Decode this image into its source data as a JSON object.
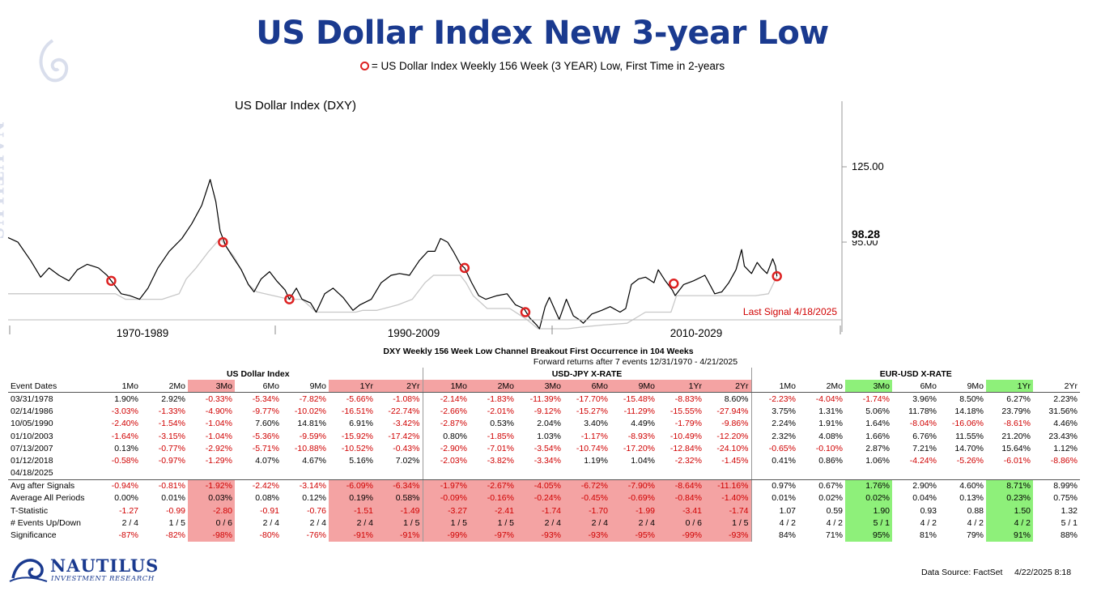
{
  "header": {
    "title": "US Dollar Index New 3-year Low",
    "subtitle": "= US Dollar Index Weekly 156 Week (3 YEAR) Low, First Time in 2-years"
  },
  "chart_data": {
    "type": "line",
    "title": "US Dollar Index (DXY)",
    "x_range": [
      "1970-12",
      "2029-12"
    ],
    "x_period_labels": [
      "1970-1989",
      "1990-2009",
      "2010-2029"
    ],
    "y_ticks": [
      "125.00",
      "95.00"
    ],
    "last_value_label": "98.28",
    "annotation": "Last Signal 4/18/2025",
    "series": [
      {
        "name": "US Dollar Index (DXY)",
        "color": "#000000",
        "points": [
          [
            1970.9,
            120.5
          ],
          [
            1971.6,
            118
          ],
          [
            1972.5,
            108
          ],
          [
            1973.2,
            99
          ],
          [
            1973.8,
            104
          ],
          [
            1974.5,
            100
          ],
          [
            1975.2,
            97
          ],
          [
            1975.8,
            103
          ],
          [
            1976.5,
            106
          ],
          [
            1977.3,
            104
          ],
          [
            1977.9,
            100
          ],
          [
            1978.2,
            97
          ],
          [
            1978.9,
            90
          ],
          [
            1979.5,
            89
          ],
          [
            1980.2,
            87
          ],
          [
            1980.8,
            93
          ],
          [
            1981.5,
            104
          ],
          [
            1982.3,
            113
          ],
          [
            1983.2,
            120
          ],
          [
            1983.9,
            128
          ],
          [
            1984.6,
            138
          ],
          [
            1985.2,
            152
          ],
          [
            1985.6,
            140
          ],
          [
            1985.9,
            124
          ],
          [
            1986.3,
            116
          ],
          [
            1986.8,
            110
          ],
          [
            1987.4,
            103
          ],
          [
            1987.9,
            95
          ],
          [
            1988.3,
            91
          ],
          [
            1988.8,
            98
          ],
          [
            1989.4,
            102
          ],
          [
            1989.9,
            97
          ],
          [
            1990.5,
            92
          ],
          [
            1990.8,
            87
          ],
          [
            1991.3,
            93
          ],
          [
            1991.7,
            87
          ],
          [
            1992.3,
            85
          ],
          [
            1992.7,
            80
          ],
          [
            1993.3,
            90
          ],
          [
            1993.9,
            93
          ],
          [
            1994.6,
            88
          ],
          [
            1995.3,
            81
          ],
          [
            1995.8,
            84
          ],
          [
            1996.6,
            87
          ],
          [
            1997.3,
            96
          ],
          [
            1998.0,
            100
          ],
          [
            1998.6,
            101
          ],
          [
            1999.3,
            100
          ],
          [
            2000.0,
            108
          ],
          [
            2000.6,
            113
          ],
          [
            2001.1,
            113
          ],
          [
            2001.5,
            120
          ],
          [
            2002.0,
            118
          ],
          [
            2002.4,
            113
          ],
          [
            2002.9,
            106
          ],
          [
            2003.2,
            104
          ],
          [
            2003.7,
            96
          ],
          [
            2004.2,
            89
          ],
          [
            2004.7,
            87
          ],
          [
            2005.5,
            89
          ],
          [
            2006.2,
            90
          ],
          [
            2006.8,
            84
          ],
          [
            2007.4,
            82
          ],
          [
            2007.8,
            77
          ],
          [
            2008.3,
            73
          ],
          [
            2008.5,
            71
          ],
          [
            2008.9,
            83
          ],
          [
            2009.2,
            88
          ],
          [
            2009.9,
            76
          ],
          [
            2010.4,
            87
          ],
          [
            2010.9,
            78
          ],
          [
            2011.3,
            76
          ],
          [
            2011.6,
            74
          ],
          [
            2012.2,
            79
          ],
          [
            2012.9,
            81
          ],
          [
            2013.5,
            83
          ],
          [
            2014.2,
            80
          ],
          [
            2014.6,
            82
          ],
          [
            2015.0,
            95
          ],
          [
            2015.5,
            98
          ],
          [
            2016.0,
            99
          ],
          [
            2016.6,
            96
          ],
          [
            2016.9,
            103
          ],
          [
            2017.4,
            97
          ],
          [
            2017.9,
            92
          ],
          [
            2018.1,
            89
          ],
          [
            2018.7,
            95
          ],
          [
            2019.4,
            97
          ],
          [
            2020.2,
            100
          ],
          [
            2020.9,
            90
          ],
          [
            2021.4,
            91
          ],
          [
            2021.9,
            96
          ],
          [
            2022.4,
            103
          ],
          [
            2022.8,
            114
          ],
          [
            2023.0,
            105
          ],
          [
            2023.5,
            101
          ],
          [
            2023.9,
            107
          ],
          [
            2024.2,
            104
          ],
          [
            2024.6,
            101
          ],
          [
            2025.0,
            109
          ],
          [
            2025.2,
            105
          ],
          [
            2025.3,
            99.5
          ]
        ]
      },
      {
        "name": "156 Week Low",
        "color": "#c8c8c8",
        "points": [
          [
            1970.9,
            90
          ],
          [
            1971.5,
            90
          ],
          [
            1972.3,
            90
          ],
          [
            1973.9,
            90
          ],
          [
            1974.3,
            90
          ],
          [
            1975.5,
            90
          ],
          [
            1977.3,
            90
          ],
          [
            1978.5,
            90
          ],
          [
            1979.2,
            87
          ],
          [
            1981.8,
            87
          ],
          [
            1983.0,
            90
          ],
          [
            1983.5,
            98
          ],
          [
            1984.2,
            104
          ],
          [
            1985.1,
            113
          ],
          [
            1985.9,
            120
          ],
          [
            1986.3,
            116
          ],
          [
            1986.9,
            110
          ],
          [
            1987.4,
            103
          ],
          [
            1987.9,
            95
          ],
          [
            1988.5,
            91
          ],
          [
            1990.8,
            87
          ],
          [
            1991.7,
            87
          ],
          [
            1992.7,
            80
          ],
          [
            1994.5,
            80
          ],
          [
            1995.5,
            80
          ],
          [
            1996.0,
            81
          ],
          [
            1997.0,
            81
          ],
          [
            1998.5,
            84
          ],
          [
            1999.5,
            87
          ],
          [
            2000.4,
            96
          ],
          [
            2001.0,
            100
          ],
          [
            2001.8,
            100
          ],
          [
            2002.3,
            100
          ],
          [
            2002.9,
            100
          ],
          [
            2003.3,
            96
          ],
          [
            2003.8,
            89
          ],
          [
            2004.8,
            82
          ],
          [
            2006.4,
            82
          ],
          [
            2007.6,
            76
          ],
          [
            2008.4,
            71
          ],
          [
            2010.5,
            71
          ],
          [
            2011.6,
            72
          ],
          [
            2013.0,
            73
          ],
          [
            2014.7,
            74
          ],
          [
            2016.0,
            80
          ],
          [
            2017.8,
            80
          ],
          [
            2018.2,
            89
          ],
          [
            2020.0,
            89
          ],
          [
            2021.0,
            89
          ],
          [
            2022.4,
            89
          ],
          [
            2023.8,
            89
          ],
          [
            2024.7,
            90
          ],
          [
            2025.3,
            99.5
          ]
        ]
      }
    ],
    "signals": [
      [
        1978.2,
        97
      ],
      [
        1986.1,
        118
      ],
      [
        1990.8,
        87
      ],
      [
        2003.2,
        104
      ],
      [
        2007.5,
        80
      ],
      [
        2018.0,
        95.5
      ],
      [
        2025.3,
        99.5
      ]
    ]
  },
  "table": {
    "title": "DXY Weekly 156 Week Low Channel Breakout First Occurrence in 104 Weeks",
    "subtitle": "Forward returns after 7 events 12/31/1970 - 4/21/2025",
    "groups": [
      "US Dollar Index",
      "USD-JPY X-RATE",
      "EUR-USD X-RATE"
    ],
    "header_label": "Event Dates",
    "columns": [
      "1Mo",
      "2Mo",
      "3Mo",
      "6Mo",
      "9Mo",
      "1Yr",
      "2Yr",
      "1Mo",
      "2Mo",
      "3Mo",
      "6Mo",
      "9Mo",
      "1Yr",
      "2Yr",
      "1Mo",
      "2Mo",
      "3Mo",
      "6Mo",
      "9Mo",
      "1Yr",
      "2Yr"
    ],
    "events": [
      {
        "date": "03/31/1978",
        "values": [
          "1.90%",
          "2.92%",
          "-0.33%",
          "-5.34%",
          "-7.82%",
          "-5.66%",
          "-1.08%",
          "-2.14%",
          "-1.83%",
          "-11.39%",
          "-17.70%",
          "-15.48%",
          "-8.83%",
          "8.60%",
          "-2.23%",
          "-4.04%",
          "-1.74%",
          "3.96%",
          "8.50%",
          "6.27%",
          "2.23%"
        ]
      },
      {
        "date": "02/14/1986",
        "values": [
          "-3.03%",
          "-1.33%",
          "-4.90%",
          "-9.77%",
          "-10.02%",
          "-16.51%",
          "-22.74%",
          "-2.66%",
          "-2.01%",
          "-9.12%",
          "-15.27%",
          "-11.29%",
          "-15.55%",
          "-27.94%",
          "3.75%",
          "1.31%",
          "5.06%",
          "11.78%",
          "14.18%",
          "23.79%",
          "31.56%"
        ]
      },
      {
        "date": "10/05/1990",
        "values": [
          "-2.40%",
          "-1.54%",
          "-1.04%",
          "7.60%",
          "14.81%",
          "6.91%",
          "-3.42%",
          "-2.87%",
          "0.53%",
          "2.04%",
          "3.40%",
          "4.49%",
          "-1.79%",
          "-9.86%",
          "2.24%",
          "1.91%",
          "1.64%",
          "-8.04%",
          "-16.06%",
          "-8.61%",
          "4.46%"
        ]
      },
      {
        "date": "01/10/2003",
        "values": [
          "-1.64%",
          "-3.15%",
          "-1.04%",
          "-5.36%",
          "-9.59%",
          "-15.92%",
          "-17.42%",
          "0.80%",
          "-1.85%",
          "1.03%",
          "-1.17%",
          "-8.93%",
          "-10.49%",
          "-12.20%",
          "2.32%",
          "4.08%",
          "1.66%",
          "6.76%",
          "11.55%",
          "21.20%",
          "23.43%"
        ]
      },
      {
        "date": "07/13/2007",
        "values": [
          "0.13%",
          "-0.77%",
          "-2.92%",
          "-5.71%",
          "-10.88%",
          "-10.52%",
          "-0.43%",
          "-2.90%",
          "-7.01%",
          "-3.54%",
          "-10.74%",
          "-17.20%",
          "-12.84%",
          "-24.10%",
          "-0.65%",
          "-0.10%",
          "2.87%",
          "7.21%",
          "14.70%",
          "15.64%",
          "1.12%"
        ]
      },
      {
        "date": "01/12/2018",
        "values": [
          "-0.58%",
          "-0.97%",
          "-1.29%",
          "4.07%",
          "4.67%",
          "5.16%",
          "7.02%",
          "-2.03%",
          "-3.82%",
          "-3.34%",
          "1.19%",
          "1.04%",
          "-2.32%",
          "-1.45%",
          "0.41%",
          "0.86%",
          "1.06%",
          "-4.24%",
          "-5.26%",
          "-6.01%",
          "-8.86%"
        ]
      },
      {
        "date": "04/18/2025",
        "values": [
          "",
          "",
          "",
          "",
          "",
          "",
          "",
          "",
          "",
          "",
          "",
          "",
          "",
          "",
          "",
          "",
          "",
          "",
          "",
          "",
          ""
        ]
      }
    ],
    "stats": [
      {
        "label": "Avg after Signals",
        "values": [
          "-0.94%",
          "-0.81%",
          "-1.92%",
          "-2.42%",
          "-3.14%",
          "-6.09%",
          "-6.34%",
          "-1.97%",
          "-2.67%",
          "-4.05%",
          "-6.72%",
          "-7.90%",
          "-8.64%",
          "-11.16%",
          "0.97%",
          "0.67%",
          "1.76%",
          "2.90%",
          "4.60%",
          "8.71%",
          "8.99%"
        ]
      },
      {
        "label": "Average All Periods",
        "values": [
          "0.00%",
          "0.01%",
          "0.03%",
          "0.08%",
          "0.12%",
          "0.19%",
          "0.58%",
          "-0.09%",
          "-0.16%",
          "-0.24%",
          "-0.45%",
          "-0.69%",
          "-0.84%",
          "-1.40%",
          "0.01%",
          "0.02%",
          "0.02%",
          "0.04%",
          "0.13%",
          "0.23%",
          "0.75%"
        ]
      },
      {
        "label": "T-Statistic",
        "values": [
          "-1.27",
          "-0.99",
          "-2.80",
          "-0.91",
          "-0.76",
          "-1.51",
          "-1.49",
          "-3.27",
          "-2.41",
          "-1.74",
          "-1.70",
          "-1.99",
          "-3.41",
          "-1.74",
          "1.07",
          "0.59",
          "1.90",
          "0.93",
          "0.88",
          "1.50",
          "1.32"
        ]
      },
      {
        "label": "# Events Up/Down",
        "values": [
          "2 / 4",
          "1 / 5",
          "0 / 6",
          "2 / 4",
          "2 / 4",
          "2 / 4",
          "1 / 5",
          "1 / 5",
          "1 / 5",
          "2 / 4",
          "2 / 4",
          "2 / 4",
          "0 / 6",
          "1 / 5",
          "4 / 2",
          "4 / 2",
          "5 / 1",
          "4 / 2",
          "4 / 2",
          "4 / 2",
          "5 / 1"
        ]
      },
      {
        "label": "Significance",
        "values": [
          "-87%",
          "-82%",
          "-98%",
          "-80%",
          "-76%",
          "-91%",
          "-91%",
          "-99%",
          "-97%",
          "-93%",
          "-93%",
          "-95%",
          "-99%",
          "-93%",
          "84%",
          "71%",
          "95%",
          "81%",
          "79%",
          "91%",
          "88%"
        ]
      }
    ],
    "highlight_red_columns": [
      2,
      5,
      6,
      7,
      8,
      9,
      10,
      11,
      12,
      13
    ],
    "highlight_green_columns": [
      16,
      19
    ]
  },
  "footer": {
    "brand": "NAUTILUS",
    "brand_sub": "INVESTMENT RESEARCH",
    "source": "Data Source: FactSet",
    "timestamp": "4/22/2025 8:18"
  }
}
